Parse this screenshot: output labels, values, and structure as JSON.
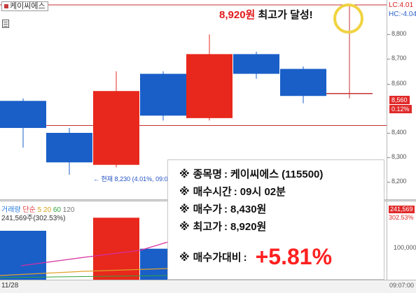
{
  "chart_title_tag": "케이씨에스",
  "headline": {
    "price": "8,920원",
    "text": " 최고가 달성!"
  },
  "right_labels": {
    "lc": "LC:4.01",
    "hc": "HC:-4.04"
  },
  "price_axis": {
    "ticks": [
      "8,800",
      "8,700",
      "8,600",
      "8,400",
      "8,300",
      "8,200"
    ],
    "current_price_box": "8,560",
    "current_pct_box": "0.12%"
  },
  "current_note": "← 현재 8,230 (4.01%, 09:01)",
  "volume": {
    "legend": {
      "name": "거래량",
      "type": "단순",
      "p1": "5",
      "p2": "20",
      "p3": "60",
      "p4": "120"
    },
    "value_text": "241,569주(302.53%)",
    "box_value": "241,569",
    "box_pct": "302.53%",
    "tick": "100,000"
  },
  "bottom_axis": {
    "date": "11/28",
    "time": "09:07:00"
  },
  "info_card": {
    "rows": [
      {
        "mark": "※",
        "label": "종목명",
        "value": "케이씨에스 (115500)"
      },
      {
        "mark": "※",
        "label": "매수시간",
        "value": "09시 02분"
      },
      {
        "mark": "※",
        "label": "매수가",
        "value": "8,430원"
      },
      {
        "mark": "※",
        "label": "최고가",
        "value": "8,920원"
      }
    ],
    "ratio": {
      "mark": "※",
      "label": "매수가대비",
      "value": "+5.81%"
    }
  },
  "colors": {
    "up": "#e8281c",
    "down": "#1a5fc8",
    "ref_line": "#c83232",
    "highlight": "#f0d341"
  },
  "chart_data": {
    "type": "candlestick",
    "price_ylim": [
      8130,
      8940
    ],
    "candles": [
      {
        "open": 8530,
        "close": 8420,
        "high": 8540,
        "low": 8340,
        "dir": "down"
      },
      {
        "open": 8400,
        "close": 8280,
        "high": 8420,
        "low": 8230,
        "dir": "down"
      },
      {
        "open": 8270,
        "close": 8570,
        "high": 8650,
        "low": 8260,
        "dir": "up"
      },
      {
        "open": 8640,
        "close": 8470,
        "high": 8650,
        "low": 8450,
        "dir": "down"
      },
      {
        "open": 8460,
        "close": 8720,
        "high": 8800,
        "low": 8450,
        "dir": "up"
      },
      {
        "open": 8720,
        "close": 8640,
        "high": 8730,
        "low": 8620,
        "dir": "down"
      },
      {
        "open": 8660,
        "close": 8550,
        "high": 8670,
        "low": 8520,
        "dir": "down"
      },
      {
        "open": 8560,
        "close": 8560,
        "high": 8920,
        "low": 8540,
        "dir": "flat"
      }
    ],
    "reference_lines": [
      8920,
      8430
    ],
    "volume_ylim": [
      0,
      240000
    ],
    "volumes": [
      150000,
      0,
      190000,
      95000,
      90000,
      0,
      0,
      0
    ]
  }
}
